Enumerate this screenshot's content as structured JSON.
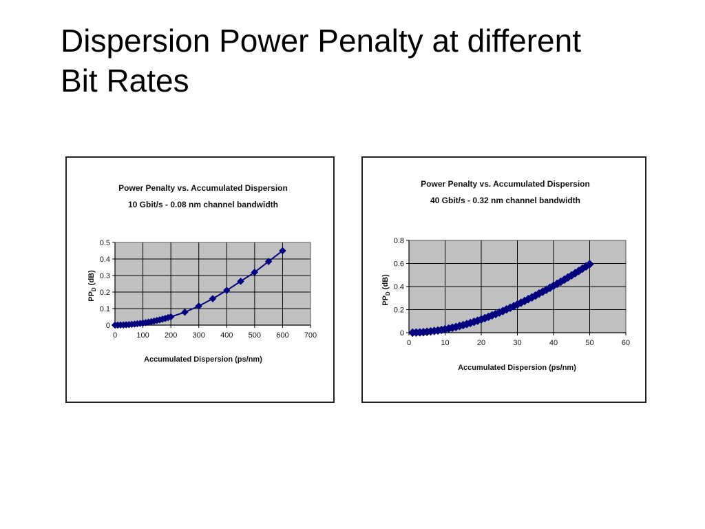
{
  "slide": {
    "title_line1": "Dispersion Power Penalty at different",
    "title_line2": "Bit Rates"
  },
  "style": {
    "plot_bg": "#c0c0c0",
    "series_color": "#00007f",
    "grid_color": "#000000"
  },
  "chart_data": [
    {
      "type": "line",
      "title": "Power Penalty vs. Accumulated Dispersion",
      "subtitle": "10 Gbit/s - 0.08 nm channel bandwidth",
      "xlabel": "Accumulated Dispersion (ps/nm)",
      "ylabel_main": "PP",
      "ylabel_sub": "D",
      "ylabel_tail": " (dB)",
      "xlim": [
        0,
        700
      ],
      "ylim": [
        0,
        0.5
      ],
      "xticks": [
        0,
        100,
        200,
        300,
        400,
        500,
        600,
        700
      ],
      "yticks": [
        0,
        0.1,
        0.2,
        0.3,
        0.4,
        0.5
      ],
      "grid": true,
      "marker": "diamond",
      "series": [
        {
          "x": [
            0,
            10,
            20,
            30,
            40,
            50,
            60,
            70,
            80,
            90,
            100,
            110,
            120,
            130,
            140,
            150,
            160,
            170,
            180,
            190,
            200,
            250,
            300,
            350,
            400,
            450,
            500,
            550,
            600
          ],
          "y": [
            0,
            0.0001,
            0.0006,
            0.0011,
            0.002,
            0.0031,
            0.0045,
            0.0061,
            0.008,
            0.0101,
            0.0125,
            0.0151,
            0.018,
            0.0211,
            0.0245,
            0.0281,
            0.032,
            0.0361,
            0.0405,
            0.0451,
            0.05,
            0.078,
            0.115,
            0.16,
            0.21,
            0.265,
            0.32,
            0.385,
            0.45
          ]
        }
      ]
    },
    {
      "type": "line",
      "title": "Power Penalty vs. Accumulated Dispersion",
      "subtitle": "40 Gbit/s - 0.32 nm channel bandwidth",
      "xlabel": "Accumulated Dispersion (ps/nm)",
      "ylabel_main": "PP",
      "ylabel_sub": "D",
      "ylabel_tail": " (dB)",
      "xlim": [
        0,
        60
      ],
      "ylim": [
        0,
        0.8
      ],
      "xticks": [
        0,
        10,
        20,
        30,
        40,
        50,
        60
      ],
      "yticks": [
        0,
        0.2,
        0.4,
        0.6,
        0.8
      ],
      "grid": true,
      "marker": "diamond",
      "series": [
        {
          "x": [
            1,
            2,
            3,
            4,
            5,
            6,
            7,
            8,
            9,
            10,
            11,
            12,
            13,
            14,
            15,
            16,
            17,
            18,
            19,
            20,
            21,
            22,
            23,
            24,
            25,
            26,
            27,
            28,
            29,
            30,
            31,
            32,
            33,
            34,
            35,
            36,
            37,
            38,
            39,
            40,
            41,
            42,
            43,
            44,
            45,
            46,
            47,
            48,
            49,
            50
          ],
          "y": [
            0.0003,
            0.0012,
            0.0027,
            0.0048,
            0.0075,
            0.011,
            0.015,
            0.019,
            0.024,
            0.03,
            0.036,
            0.043,
            0.05,
            0.058,
            0.066,
            0.075,
            0.084,
            0.094,
            0.104,
            0.115,
            0.126,
            0.138,
            0.15,
            0.162,
            0.175,
            0.188,
            0.202,
            0.216,
            0.23,
            0.245,
            0.26,
            0.275,
            0.291,
            0.306,
            0.322,
            0.339,
            0.355,
            0.372,
            0.389,
            0.407,
            0.424,
            0.442,
            0.46,
            0.479,
            0.497,
            0.516,
            0.535,
            0.555,
            0.574,
            0.594
          ]
        }
      ]
    }
  ]
}
